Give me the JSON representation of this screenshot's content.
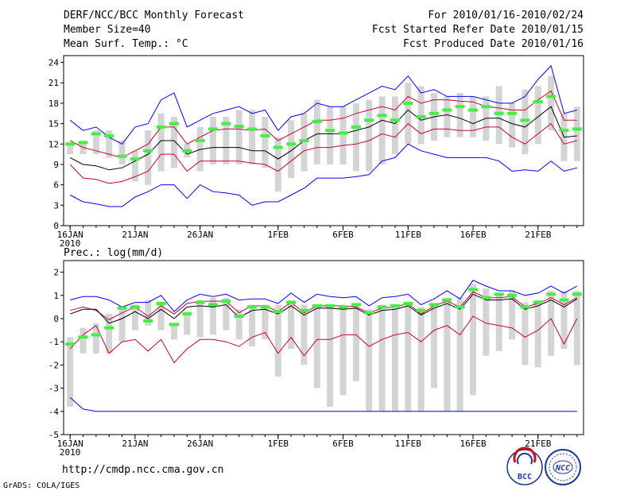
{
  "header": {
    "title": "DERF/NCC/BCC Monthly Forecast",
    "member_size": "Member Size=40",
    "variable": "Mean Surf. Temp.: °C",
    "period": "For 2010/01/16-2010/02/24",
    "started": "Fcst Started Refer Date 2010/01/15",
    "produced": "Fcst Produced Date 2010/01/16"
  },
  "footer": {
    "url": "http://cmdp.ncc.cma.gov.cn",
    "credit": "GrADS: COLA/IGES",
    "logo_bcc_text": "BCC",
    "logo_ncc_text": "NCC"
  },
  "colors": {
    "minmax": "#0000ff",
    "band": "#cc0033",
    "mean": "#000000",
    "box": "#d4d4d4",
    "median": "#44ee44",
    "frame": "#000000"
  },
  "chart_data": [
    {
      "type": "line",
      "title": "Mean Surf. Temp.: °C",
      "x_labels": [
        {
          "day": 1,
          "label": "16JAN",
          "sub": "2010"
        },
        {
          "day": 6,
          "label": "21JAN"
        },
        {
          "day": 11,
          "label": "26JAN"
        },
        {
          "day": 17,
          "label": "1FEB"
        },
        {
          "day": 22,
          "label": "6FEB"
        },
        {
          "day": 27,
          "label": "11FEB"
        },
        {
          "day": 32,
          "label": "16FEB"
        },
        {
          "day": 37,
          "label": "21FEB"
        }
      ],
      "xlim": [
        0.5,
        40.5
      ],
      "ylim": [
        0,
        25
      ],
      "yticks": [
        0,
        3,
        6,
        9,
        12,
        15,
        18,
        21,
        24
      ],
      "x": [
        1,
        2,
        3,
        4,
        5,
        6,
        7,
        8,
        9,
        10,
        11,
        12,
        13,
        14,
        15,
        16,
        17,
        18,
        19,
        20,
        21,
        22,
        23,
        24,
        25,
        26,
        27,
        28,
        29,
        30,
        31,
        32,
        33,
        34,
        35,
        36,
        37,
        38,
        39,
        40
      ],
      "box_low": [
        10.5,
        10.5,
        10.5,
        10,
        9,
        6.5,
        6,
        8,
        8.5,
        10,
        8,
        9,
        9,
        9,
        9,
        8.5,
        5,
        7,
        8,
        9,
        9,
        9,
        8,
        8,
        9,
        10.5,
        12,
        12,
        12.5,
        13,
        13,
        13,
        12.5,
        12,
        11.5,
        10.5,
        12,
        14,
        9.5,
        9.5
      ],
      "box_high": [
        12,
        12.5,
        14,
        14,
        12.5,
        11,
        14,
        16.5,
        16,
        12,
        14.5,
        16,
        16,
        17,
        17,
        16,
        13,
        15.5,
        16.5,
        18.5,
        17.5,
        17.5,
        18,
        18.5,
        19,
        19,
        21,
        20.5,
        19.5,
        19,
        19.5,
        19,
        19,
        20.5,
        18,
        20,
        20.5,
        22,
        16.5,
        17.5
      ],
      "median": [
        12,
        12.2,
        13.5,
        13.2,
        10.2,
        9.8,
        11,
        14.5,
        15,
        11,
        12.5,
        14.2,
        15,
        14.6,
        14.2,
        13.2,
        11.5,
        12,
        12.5,
        15.3,
        14,
        13.6,
        14.5,
        15.5,
        16.2,
        15.5,
        18,
        16,
        16.5,
        17,
        17.5,
        17,
        17.5,
        16.5,
        16.5,
        15.5,
        18.2,
        19,
        14,
        14.2
      ],
      "series": [
        {
          "name": "max",
          "role": "minmax",
          "values": [
            15.5,
            14,
            14.5,
            13,
            12,
            14.5,
            15,
            18.5,
            19.5,
            14.5,
            15.5,
            16.5,
            17,
            17.5,
            16.5,
            17,
            14,
            16,
            16.5,
            18,
            17.5,
            17.5,
            18.5,
            19.5,
            20.5,
            20,
            22,
            19.5,
            20,
            19,
            19,
            19,
            18.5,
            18,
            18,
            19,
            21.5,
            23.5,
            16.5,
            17
          ]
        },
        {
          "name": "upper",
          "role": "band",
          "values": [
            12.5,
            11.5,
            11,
            10.5,
            10,
            11,
            12,
            14.5,
            14.5,
            12,
            13,
            14,
            14.2,
            14.2,
            14,
            14.2,
            12.5,
            13.5,
            14.5,
            15.5,
            15.5,
            15.8,
            16.5,
            17,
            17.5,
            17,
            19,
            18,
            18.5,
            18.5,
            18.3,
            18.2,
            17.5,
            17.3,
            17,
            17,
            18.5,
            19.8,
            15.5,
            15.5
          ]
        },
        {
          "name": "mean",
          "role": "mean",
          "values": [
            10,
            9,
            8.8,
            8.2,
            8.5,
            9.5,
            10.5,
            12.5,
            12.5,
            10.5,
            11.2,
            11.5,
            11.5,
            11.5,
            11,
            11,
            9.8,
            11,
            12.5,
            13.5,
            13.5,
            13.5,
            14,
            14.5,
            15.5,
            15,
            17,
            15.5,
            16,
            16.3,
            15.8,
            15,
            15.8,
            15.8,
            15,
            14.5,
            16,
            17.5,
            13,
            13.2
          ]
        },
        {
          "name": "lower",
          "role": "band",
          "values": [
            9,
            7,
            6.8,
            6.2,
            6.5,
            7.2,
            8,
            10.5,
            10.5,
            8,
            9.5,
            9.5,
            9.5,
            9.5,
            9.2,
            9,
            8,
            9.5,
            11,
            11.5,
            11.5,
            11.8,
            12,
            12.5,
            13.5,
            13,
            15,
            13.5,
            14.2,
            14.2,
            14,
            14,
            14.5,
            14.5,
            13,
            12,
            13.5,
            15,
            12,
            12.5
          ]
        },
        {
          "name": "min",
          "role": "minmax",
          "values": [
            4.5,
            3.5,
            3.2,
            2.8,
            2.8,
            4.2,
            5,
            6,
            6,
            4,
            6,
            5,
            4.8,
            4.5,
            3,
            3.5,
            3.5,
            4.5,
            5.5,
            7,
            7,
            7,
            7.2,
            7.5,
            9.5,
            10,
            12,
            11,
            10.5,
            10,
            10,
            10,
            10,
            9.5,
            8,
            8.2,
            8,
            9.5,
            8,
            8.5
          ]
        }
      ]
    },
    {
      "type": "line",
      "title": "Prec.: log(mm/d)",
      "x_labels": [
        {
          "day": 1,
          "label": "16JAN",
          "sub": "2010"
        },
        {
          "day": 6,
          "label": "21JAN"
        },
        {
          "day": 11,
          "label": "26JAN"
        },
        {
          "day": 17,
          "label": "1FEB"
        },
        {
          "day": 22,
          "label": "6FEB"
        },
        {
          "day": 27,
          "label": "11FEB"
        },
        {
          "day": 32,
          "label": "16FEB"
        },
        {
          "day": 37,
          "label": "21FEB"
        }
      ],
      "xlim": [
        0.5,
        40.5
      ],
      "ylim": [
        -5,
        2.5
      ],
      "yticks": [
        -5,
        -4,
        -3,
        -2,
        -1,
        0,
        1,
        2
      ],
      "x": [
        1,
        2,
        3,
        4,
        5,
        6,
        7,
        8,
        9,
        10,
        11,
        12,
        13,
        14,
        15,
        16,
        17,
        18,
        19,
        20,
        21,
        22,
        23,
        24,
        25,
        26,
        27,
        28,
        29,
        30,
        31,
        32,
        33,
        34,
        35,
        36,
        37,
        38,
        39,
        40
      ],
      "box_low": [
        -3.8,
        -1.5,
        -1.5,
        -1.5,
        -1,
        -0.5,
        -0.3,
        -0.5,
        -0.9,
        -0.7,
        -0.8,
        -0.7,
        -0.5,
        -0.9,
        -1.2,
        -0.9,
        -2.5,
        -1.3,
        -2,
        -3,
        -3.8,
        -3.3,
        -2.7,
        -4,
        -4,
        -4,
        -4,
        -4,
        -3,
        -4,
        -4,
        -3.3,
        -1.6,
        -1.4,
        -0.9,
        -2,
        -2.1,
        -1.6,
        -1.3,
        -2
      ],
      "box_high": [
        -0.8,
        -0.4,
        -0.2,
        0.2,
        0.5,
        0.6,
        0.8,
        0.7,
        -0.2,
        0.3,
        0.8,
        0.9,
        0.9,
        0.4,
        0.6,
        0.6,
        0.6,
        0.8,
        0.6,
        0.6,
        0.6,
        0.6,
        0.6,
        0.4,
        0.6,
        0.6,
        0.7,
        0.5,
        0.6,
        0.9,
        0.9,
        1.5,
        1.3,
        1.1,
        1.2,
        0.7,
        0.8,
        1.2,
        1.2,
        1.2
      ],
      "median": [
        -1.1,
        -0.8,
        -0.7,
        -0.4,
        0.45,
        0.5,
        -0.1,
        0.65,
        -0.25,
        0.2,
        0.7,
        0.6,
        0.75,
        0.1,
        0.5,
        0.5,
        0.3,
        0.7,
        0.35,
        0.55,
        0.55,
        0.5,
        0.6,
        0.25,
        0.5,
        0.55,
        0.65,
        0.35,
        0.6,
        0.8,
        0.5,
        1.25,
        0.9,
        1.05,
        1.0,
        0.5,
        0.7,
        1.05,
        0.8,
        1.05
      ],
      "series": [
        {
          "name": "max",
          "role": "minmax",
          "values": [
            0.8,
            0.95,
            0.95,
            0.8,
            0.5,
            0.7,
            0.7,
            1,
            0.3,
            0.8,
            1.05,
            0.95,
            1.05,
            0.8,
            0.85,
            0.85,
            0.65,
            1.1,
            0.7,
            1.05,
            0.95,
            0.9,
            0.95,
            0.55,
            0.9,
            0.95,
            1.05,
            0.6,
            0.85,
            1.2,
            0.85,
            1.65,
            1.4,
            1.2,
            1.2,
            1,
            1.1,
            1.4,
            1.1,
            1.4
          ]
        },
        {
          "name": "upper",
          "role": "band",
          "values": [
            0.35,
            0.5,
            0.35,
            -0.05,
            0.25,
            0.5,
            0.1,
            0.55,
            0.2,
            0.65,
            0.75,
            0.75,
            0.75,
            0.25,
            0.55,
            0.55,
            0.3,
            0.7,
            0.25,
            0.55,
            0.55,
            0.55,
            0.5,
            0.25,
            0.45,
            0.5,
            0.65,
            0.2,
            0.55,
            0.75,
            0.5,
            1.15,
            0.9,
            0.9,
            0.95,
            0.5,
            0.65,
            0.9,
            0.6,
            0.9
          ]
        },
        {
          "name": "mean",
          "role": "mean",
          "values": [
            0.2,
            0.4,
            0.4,
            -0.2,
            0,
            0.3,
            0,
            0.4,
            0,
            0.5,
            0.55,
            0.5,
            0.6,
            0.05,
            0.35,
            0.4,
            0.2,
            0.55,
            0.15,
            0.45,
            0.45,
            0.4,
            0.45,
            0.15,
            0.35,
            0.4,
            0.55,
            0.15,
            0.45,
            0.65,
            0.4,
            1.05,
            0.8,
            0.8,
            0.85,
            0.4,
            0.55,
            0.8,
            0.5,
            0.85
          ]
        },
        {
          "name": "lower",
          "role": "band",
          "values": [
            -1.3,
            -0.7,
            -0.3,
            -1.5,
            -1,
            -0.9,
            -1.4,
            -0.9,
            -1.9,
            -1.3,
            -0.9,
            -0.9,
            -1,
            -1.2,
            -0.8,
            -0.6,
            -1.5,
            -0.8,
            -1.6,
            -0.9,
            -0.9,
            -0.7,
            -0.7,
            -1.2,
            -0.9,
            -0.7,
            -0.6,
            -1,
            -0.5,
            -0.3,
            -0.7,
            0.1,
            -0.2,
            -0.3,
            -0.4,
            -0.8,
            -0.5,
            0,
            -1.1,
            0
          ]
        },
        {
          "name": "min",
          "role": "minmax",
          "values": [
            -3.4,
            -3.9,
            -4,
            -4,
            -4,
            -4,
            -4,
            -4,
            -4,
            -4,
            -4,
            -4,
            -4,
            -4,
            -4,
            -4,
            -4,
            -4,
            -4,
            -4,
            -4,
            -4,
            -4,
            -4,
            -4,
            -4,
            -4,
            -4,
            -4,
            -4,
            -4,
            -4,
            -4,
            -4,
            -4,
            -4,
            -4,
            -4,
            -4,
            -4
          ]
        }
      ]
    }
  ]
}
